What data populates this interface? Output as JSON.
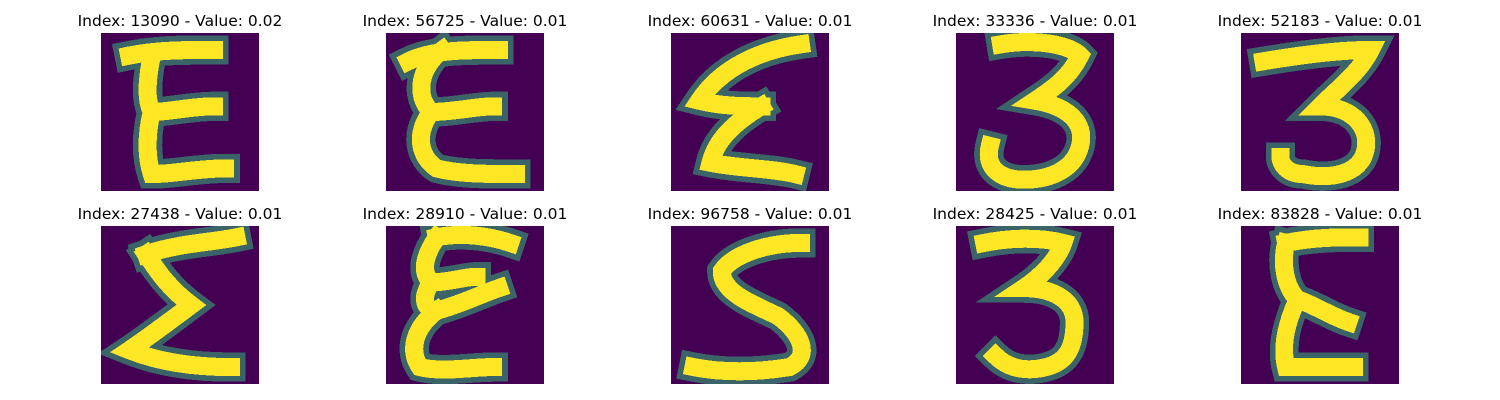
{
  "figure": {
    "colormap": "viridis",
    "background_color": "#ffffff",
    "image_bg_color": "#440154",
    "stroke_color": "#fde725",
    "edge_color": "#35b779",
    "title_color": "#000000",
    "panels": [
      {
        "title": "Index: 13090 - Value: 0.02",
        "glyph": "epsilon-glyph"
      },
      {
        "title": "Index: 56725 - Value: 0.01",
        "glyph": "epsilon-glyph"
      },
      {
        "title": "Index: 60631 - Value: 0.01",
        "glyph": "epsilon-glyph"
      },
      {
        "title": "Index: 33336 - Value: 0.01",
        "glyph": "three-glyph"
      },
      {
        "title": "Index: 52183 - Value: 0.01",
        "glyph": "three-glyph"
      },
      {
        "title": "Index: 27438 - Value: 0.01",
        "glyph": "epsilon-glyph"
      },
      {
        "title": "Index: 28910 - Value: 0.01",
        "glyph": "epsilon-glyph"
      },
      {
        "title": "Index: 96758 - Value: 0.01",
        "glyph": "five-glyph"
      },
      {
        "title": "Index: 28425 - Value: 0.01",
        "glyph": "three-glyph"
      },
      {
        "title": "Index: 83828 - Value: 0.01",
        "glyph": "epsilon-glyph"
      }
    ]
  }
}
